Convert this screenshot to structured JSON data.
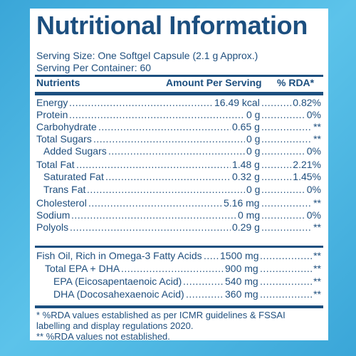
{
  "title": "Nutritional Information",
  "serving_size": "Serving Size: One Softgel Capsule (2.1 g Approx.)",
  "servings_per_container": "Serving Per Container: 60",
  "headers": {
    "nutrients": "Nutrients",
    "amount": "Amount Per Serving",
    "rda": "% RDA*"
  },
  "rows": [
    {
      "label": "Energy",
      "amount": "16.49 kcal",
      "rda": "0.82%"
    },
    {
      "label": "Protein",
      "amount": "0 g",
      "rda": "0%"
    },
    {
      "label": "Carbohydrate",
      "amount": "0.65 g",
      "rda": "**"
    },
    {
      "label": "Total Sugars",
      "amount": "0 g",
      "rda": "**"
    },
    {
      "label": "Added Sugars",
      "amount": "0 g",
      "rda": "0%"
    },
    {
      "label": "Total Fat",
      "amount": "1.48 g",
      "rda": "2.21%"
    },
    {
      "label": "Saturated Fat",
      "amount": "0.32 g",
      "rda": "1.45%"
    },
    {
      "label": "Trans Fat",
      "amount": "0 g",
      "rda": "0%"
    },
    {
      "label": "Cholesterol",
      "amount": "5.16 mg",
      "rda": "**"
    },
    {
      "label": "Sodium",
      "amount": "0 mg",
      "rda": "0%"
    },
    {
      "label": "Polyols",
      "amount": "0.29 g",
      "rda": "**"
    },
    {
      "label": "Fish Oil, Rich in Omega-3 Fatty Acids",
      "amount": "1500 mg",
      "rda": "**"
    },
    {
      "label": "Total EPA + DHA",
      "amount": "900 mg",
      "rda": "**"
    },
    {
      "label": "EPA (Eicosapentaenoic Acid)",
      "amount": "540 mg",
      "rda": "**"
    },
    {
      "label": "DHA (Docosahexaenoic Acid)",
      "amount": "360 mg",
      "rda": "**"
    }
  ],
  "footnotes": [
    "* %RDA values established as per ICMR guidelines & FSSAI",
    "labelling and display regulations 2020.",
    "** %RDA values not established."
  ]
}
